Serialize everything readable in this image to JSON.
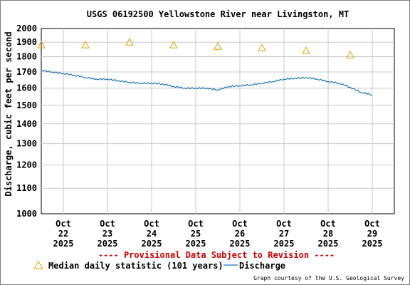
{
  "chart_data": {
    "type": "line",
    "title": "USGS 06192500 Yellowstone River near Livingston, MT",
    "ylabel": "Discharge, cubic feet per second",
    "xlabel": "",
    "y_scale": "log",
    "ylim": [
      1000,
      2000
    ],
    "y_ticks": [
      "2000",
      "1900",
      "1800",
      "1700",
      "1600",
      "1500",
      "1400",
      "1300",
      "1200",
      "1100",
      "1000"
    ],
    "x_ticks": [
      {
        "month": "Oct",
        "day": "22",
        "year": "2025"
      },
      {
        "month": "Oct",
        "day": "23",
        "year": "2025"
      },
      {
        "month": "Oct",
        "day": "24",
        "year": "2025"
      },
      {
        "month": "Oct",
        "day": "25",
        "year": "2025"
      },
      {
        "month": "Oct",
        "day": "26",
        "year": "2025"
      },
      {
        "month": "Oct",
        "day": "27",
        "year": "2025"
      },
      {
        "month": "Oct",
        "day": "28",
        "year": "2025"
      },
      {
        "month": "Oct",
        "day": "29",
        "year": "2025"
      }
    ],
    "grid": true,
    "series": [
      {
        "name": "Discharge",
        "color": "#1f77b4",
        "points": [
          [
            "2025-10-21 12:00",
            1710
          ],
          [
            "2025-10-21 18:00",
            1700
          ],
          [
            "2025-10-22 00:00",
            1690
          ],
          [
            "2025-10-22 06:00",
            1680
          ],
          [
            "2025-10-22 12:00",
            1665
          ],
          [
            "2025-10-22 18:00",
            1655
          ],
          [
            "2025-10-23 00:00",
            1655
          ],
          [
            "2025-10-23 06:00",
            1645
          ],
          [
            "2025-10-23 12:00",
            1635
          ],
          [
            "2025-10-23 18:00",
            1630
          ],
          [
            "2025-10-24 00:00",
            1630
          ],
          [
            "2025-10-24 06:00",
            1625
          ],
          [
            "2025-10-24 12:00",
            1610
          ],
          [
            "2025-10-24 18:00",
            1600
          ],
          [
            "2025-10-25 00:00",
            1600
          ],
          [
            "2025-10-25 06:00",
            1600
          ],
          [
            "2025-10-25 12:00",
            1590
          ],
          [
            "2025-10-25 18:00",
            1610
          ],
          [
            "2025-10-26 00:00",
            1615
          ],
          [
            "2025-10-26 06:00",
            1620
          ],
          [
            "2025-10-26 12:00",
            1630
          ],
          [
            "2025-10-26 18:00",
            1640
          ],
          [
            "2025-10-27 00:00",
            1655
          ],
          [
            "2025-10-27 06:00",
            1660
          ],
          [
            "2025-10-27 12:00",
            1665
          ],
          [
            "2025-10-27 18:00",
            1655
          ],
          [
            "2025-10-28 00:00",
            1640
          ],
          [
            "2025-10-28 06:00",
            1630
          ],
          [
            "2025-10-28 12:00",
            1605
          ],
          [
            "2025-10-28 18:00",
            1575
          ],
          [
            "2025-10-29 00:00",
            1560
          ]
        ]
      },
      {
        "name": "Median daily statistic (101 years)",
        "color": "#e8a000",
        "marker": "triangle",
        "points": [
          [
            "2025-10-21 12:00",
            1880
          ],
          [
            "2025-10-22 12:00",
            1880
          ],
          [
            "2025-10-23 12:00",
            1900
          ],
          [
            "2025-10-24 12:00",
            1880
          ],
          [
            "2025-10-25 12:00",
            1870
          ],
          [
            "2025-10-26 12:00",
            1860
          ],
          [
            "2025-10-27 12:00",
            1840
          ],
          [
            "2025-10-28 12:00",
            1810
          ]
        ]
      }
    ],
    "legend_position": "bottom",
    "notice": "---- Provisional Data Subject to Revision ----",
    "notice_color": "#cc0000",
    "credit": "Graph courtesy of the U.S. Geological Survey"
  }
}
